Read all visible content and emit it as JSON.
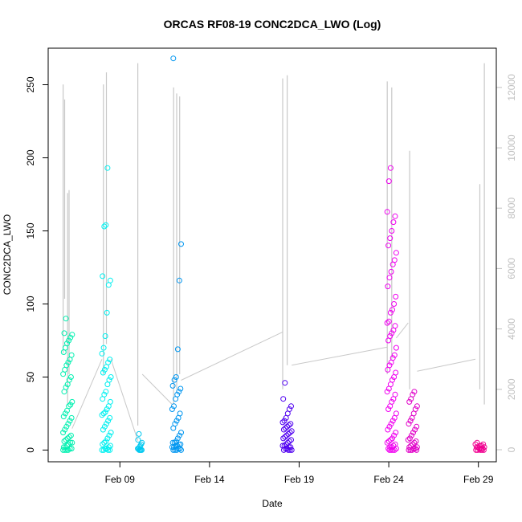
{
  "chart_data": {
    "type": "scatter",
    "title": "ORCAS RF08-19 CONC2DCA_LWO (Log)",
    "xlabel": "Date",
    "ylabel": "CONC2DCA_LWO",
    "x_ticks": [
      "Feb 09",
      "Feb 14",
      "Feb 19",
      "Feb 24",
      "Feb 29"
    ],
    "y_ticks": [
      "0",
      "50",
      "100",
      "150",
      "200",
      "250"
    ],
    "y2_ticks": [
      "0",
      "2000",
      "4000",
      "6000",
      "8000",
      "10000",
      "12000"
    ],
    "xlim": [
      "2016-02-05T12:00",
      "2016-03-01T12:00"
    ],
    "ylim": [
      -8,
      275
    ],
    "y2lim": [
      -400,
      13300
    ],
    "grid": false,
    "colors": {
      "trace": "#c8c8c8",
      "axis": "#000000",
      "right_axis": "#c0c0c0"
    },
    "flights": [
      {
        "date": "2016-02-06",
        "start": "2016-02-06T08:00",
        "end": "2016-02-06T20:00",
        "color": "#00f0b0",
        "values": [
          0,
          0,
          0,
          0,
          1,
          1,
          2,
          2,
          3,
          4,
          5,
          5,
          6,
          7,
          8,
          9,
          10,
          12,
          14,
          16,
          18,
          20,
          22,
          23,
          25,
          27,
          30,
          31,
          33,
          40,
          43,
          45,
          48,
          50,
          52,
          55,
          58,
          60,
          62,
          65,
          67,
          70,
          73,
          75,
          77,
          79,
          80,
          90
        ]
      },
      {
        "date": "2016-02-08",
        "start": "2016-02-08T12:00",
        "end": "2016-02-09T00:00",
        "color": "#00f0f0",
        "values": [
          0,
          0,
          0,
          0,
          1,
          1,
          2,
          3,
          4,
          5,
          6,
          8,
          10,
          12,
          14,
          16,
          18,
          20,
          22,
          24,
          25,
          26,
          28,
          30,
          33,
          35,
          38,
          40,
          45,
          48,
          50,
          53,
          55,
          57,
          60,
          62,
          66,
          70,
          78,
          94,
          113,
          116,
          119,
          153,
          154,
          193
        ]
      },
      {
        "date": "2016-02-10",
        "start": "2016-02-10T12:00",
        "end": "2016-02-10T18:00",
        "color": "#00c8f0",
        "values": [
          0,
          0,
          0,
          0,
          1,
          1,
          2,
          3,
          4,
          5,
          7,
          11
        ]
      },
      {
        "date": "2016-02-12",
        "start": "2016-02-12T10:00",
        "end": "2016-02-12T22:00",
        "color": "#0096f0",
        "values": [
          0,
          0,
          0,
          0,
          1,
          1,
          2,
          2,
          3,
          3,
          4,
          4,
          5,
          5,
          6,
          8,
          10,
          12,
          15,
          18,
          20,
          22,
          25,
          28,
          30,
          35,
          38,
          40,
          42,
          44,
          48,
          50,
          69,
          116,
          141,
          268
        ]
      },
      {
        "date": "2016-02-18",
        "start": "2016-02-18T14:00",
        "end": "2016-02-19T02:00",
        "color": "#5000f0",
        "values": [
          0,
          0,
          0,
          0,
          1,
          1,
          2,
          2,
          3,
          3,
          4,
          5,
          6,
          7,
          8,
          9,
          10,
          11,
          12,
          13,
          14,
          15,
          16,
          17,
          18,
          19,
          20,
          22,
          25,
          28,
          30,
          35,
          46
        ]
      },
      {
        "date": "2016-02-24",
        "start": "2016-02-24T10:00",
        "end": "2016-02-24T22:00",
        "color": "#f000f0",
        "values": [
          0,
          0,
          0,
          0,
          1,
          1,
          2,
          2,
          3,
          4,
          5,
          6,
          7,
          8,
          10,
          12,
          14,
          16,
          18,
          20,
          22,
          25,
          28,
          30,
          33,
          35,
          38,
          40,
          42,
          45,
          48,
          50,
          53,
          55,
          58,
          60,
          63,
          65,
          70,
          75,
          78,
          80,
          82,
          85,
          87,
          88,
          94,
          96,
          100,
          105,
          112,
          118,
          122,
          127,
          130,
          135,
          140,
          145,
          150,
          156,
          160,
          163,
          184,
          193
        ]
      },
      {
        "date": "2016-02-25",
        "start": "2016-02-25T14:00",
        "end": "2016-02-26T02:00",
        "color": "#e000c8",
        "values": [
          0,
          0,
          0,
          0,
          1,
          1,
          2,
          2,
          3,
          4,
          5,
          6,
          7,
          8,
          10,
          12,
          14,
          16,
          18,
          20,
          22,
          25,
          28,
          30,
          33,
          35,
          38,
          40
        ]
      },
      {
        "date": "2016-02-29",
        "start": "2016-02-29T08:00",
        "end": "2016-02-29T20:00",
        "color": "#f00090",
        "values": [
          0,
          0,
          0,
          0,
          0,
          1,
          1,
          1,
          2,
          2,
          2,
          3,
          3,
          4,
          4,
          5
        ]
      }
    ],
    "trace_series": {
      "name": "",
      "axis": "right",
      "connectors": [
        [
          "2016-02-06T20:00",
          700,
          "2016-02-08T12:00",
          3000
        ],
        [
          "2016-02-09T00:00",
          3000,
          "2016-02-10T12:00",
          300
        ],
        [
          "2016-02-10T18:00",
          2500,
          "2016-02-12T10:00",
          1500
        ],
        [
          "2016-02-12T22:00",
          2300,
          "2016-02-18T14:00",
          3900
        ],
        [
          "2016-02-19T02:00",
          2800,
          "2016-02-24T10:00",
          3400
        ],
        [
          "2016-02-24T22:00",
          3700,
          "2016-02-25T14:00",
          4200
        ],
        [
          "2016-02-26T02:00",
          2600,
          "2016-02-29T08:00",
          3000
        ]
      ],
      "spikes": [
        [
          "2016-02-06T08:00",
          3200,
          12100
        ],
        [
          "2016-02-06T10:00",
          5000,
          11600
        ],
        [
          "2016-02-06T14:00",
          1500,
          8500
        ],
        [
          "2016-02-06T16:00",
          2500,
          8600
        ],
        [
          "2016-02-08T14:00",
          2500,
          12100
        ],
        [
          "2016-02-08T18:00",
          3500,
          12500
        ],
        [
          "2016-02-10T12:00",
          800,
          12800
        ],
        [
          "2016-02-12T12:00",
          1500,
          12000
        ],
        [
          "2016-02-12T16:00",
          2000,
          11800
        ],
        [
          "2016-02-12T20:00",
          2500,
          11700
        ],
        [
          "2016-02-18T14:00",
          2000,
          12300
        ],
        [
          "2016-02-18T20:00",
          2800,
          12400
        ],
        [
          "2016-02-24T10:00",
          2500,
          12200
        ],
        [
          "2016-02-24T16:00",
          3000,
          12000
        ],
        [
          "2016-02-25T16:00",
          2000,
          9900
        ],
        [
          "2016-02-29T14:00",
          2000,
          8800
        ],
        [
          "2016-02-29T20:00",
          1500,
          12800
        ]
      ]
    }
  }
}
